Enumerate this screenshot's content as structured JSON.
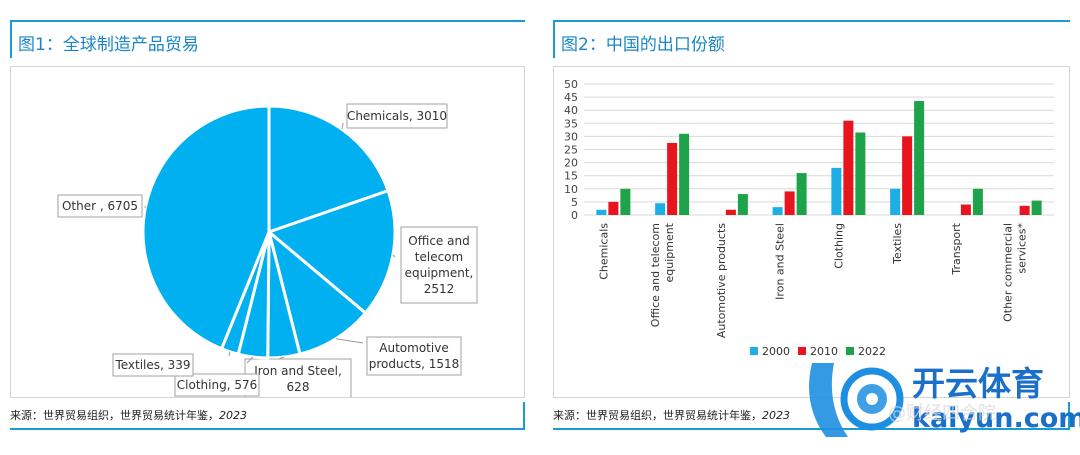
{
  "panels": [
    {
      "title": "图1：全球制造产品贸易",
      "source_prefix": "来源：世界贸易组织，世界贸易统计年鉴，",
      "source_year": "2023"
    },
    {
      "title": "图2：中国的出口份额",
      "source_prefix": "来源：世界贸易组织，世界贸易统计年鉴，",
      "source_year": "2023"
    }
  ],
  "chart_data": [
    {
      "type": "pie",
      "color": "#00b0f0",
      "slices": [
        {
          "label_lines": [
            "Chemicals, 3010"
          ],
          "value": 3010
        },
        {
          "label_lines": [
            "Office and",
            "telecom",
            "equipment,",
            "2512"
          ],
          "value": 2512
        },
        {
          "label_lines": [
            "Automotive",
            "products, 1518"
          ],
          "value": 1518
        },
        {
          "label_lines": [
            "Iron and Steel,",
            "628"
          ],
          "value": 628
        },
        {
          "label_lines": [
            "Clothing, 576"
          ],
          "value": 576
        },
        {
          "label_lines": [
            "Textiles, 339"
          ],
          "value": 339
        },
        {
          "label_lines": [
            "Other , 6705"
          ],
          "value": 6705
        }
      ]
    },
    {
      "type": "bar",
      "categories": [
        [
          "Chemicals"
        ],
        [
          "Office and telecom",
          "equipment"
        ],
        [
          "Automotive products"
        ],
        [
          "Iron and Steel"
        ],
        [
          "Clothing"
        ],
        [
          "Textiles"
        ],
        [
          "Transport"
        ],
        [
          "Other commercial",
          "services*"
        ]
      ],
      "series": [
        {
          "name": "2000",
          "color": "#1eaee6",
          "values": [
            2,
            4.5,
            0,
            3,
            18,
            10,
            0,
            0
          ]
        },
        {
          "name": "2010",
          "color": "#e8141e",
          "values": [
            5,
            27.5,
            2,
            9,
            36,
            30,
            4,
            3.5
          ]
        },
        {
          "name": "2022",
          "color": "#1fa34a",
          "values": [
            10,
            31,
            8,
            16,
            31.5,
            43.5,
            10,
            5.5
          ]
        }
      ],
      "yticks": [
        0,
        5,
        10,
        15,
        20,
        25,
        30,
        35,
        40,
        45,
        50
      ],
      "ylim": [
        0,
        50
      ],
      "legend_position": "bottom"
    }
  ],
  "watermark": {
    "brand": "开云体育",
    "url": "kaiyun.com",
    "overlay": "@财经四合院"
  }
}
